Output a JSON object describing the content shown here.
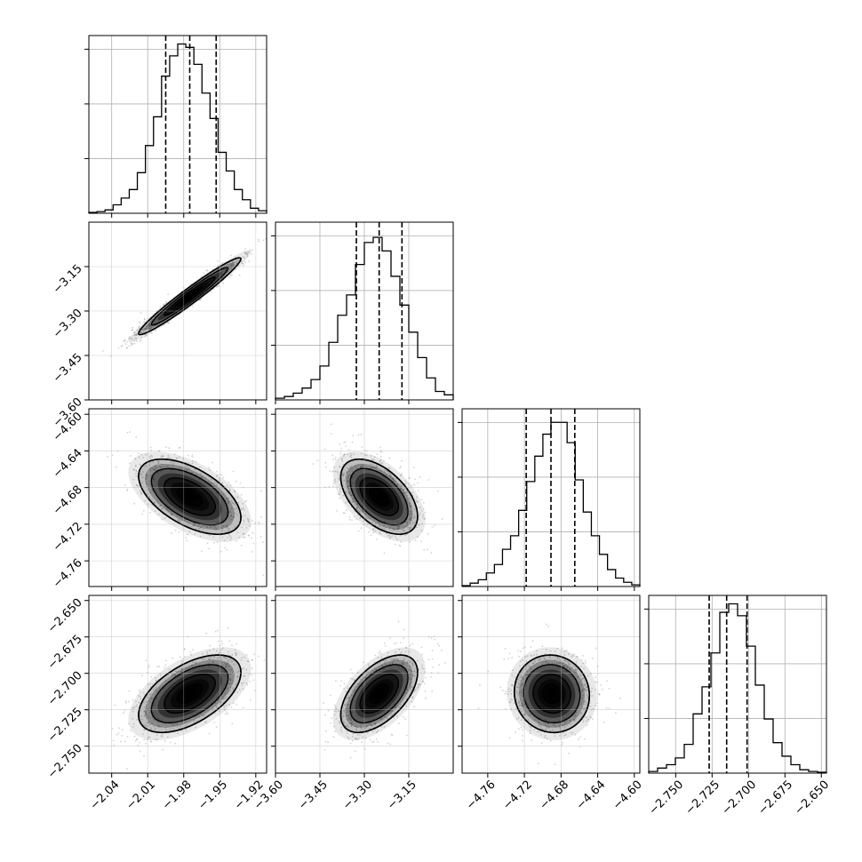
{
  "chart_data": {
    "type": "corner",
    "parameters": [
      {
        "index": 0,
        "range": [
          -2.059,
          -1.911
        ],
        "ticks": [
          -2.04,
          -2.01,
          -1.98,
          -1.95,
          -1.92
        ],
        "tick_labels": [
          "−2.04",
          "−2.01",
          "−1.98",
          "−1.95",
          "−1.92"
        ],
        "quantiles": [
          -1.995,
          -1.975,
          -1.953
        ],
        "histogram": [
          0.005,
          0.01,
          0.02,
          0.05,
          0.09,
          0.14,
          0.24,
          0.4,
          0.57,
          0.81,
          0.93,
          1.0,
          0.98,
          0.88,
          0.71,
          0.56,
          0.36,
          0.25,
          0.14,
          0.08,
          0.03,
          0.015
        ]
      },
      {
        "index": 1,
        "range": [
          -3.6,
          -3.0
        ],
        "ticks": [
          -3.6,
          -3.45,
          -3.3,
          -3.15
        ],
        "tick_labels": [
          "−3.60",
          "−3.45",
          "−3.30",
          "−3.15"
        ],
        "quantiles": [
          -3.327,
          -3.25,
          -3.173
        ],
        "histogram": [
          0.01,
          0.02,
          0.04,
          0.07,
          0.12,
          0.2,
          0.34,
          0.5,
          0.62,
          0.8,
          0.93,
          0.96,
          0.88,
          0.73,
          0.56,
          0.4,
          0.25,
          0.13,
          0.05,
          0.03
        ]
      },
      {
        "index": 2,
        "range": [
          -4.788,
          -4.594
        ],
        "ticks": [
          -4.76,
          -4.72,
          -4.68,
          -4.64,
          -4.6
        ],
        "tick_labels": [
          "−4.76",
          "−4.72",
          "−4.68",
          "−4.64",
          "−4.60"
        ],
        "quantiles": [
          -4.718,
          -4.691,
          -4.665
        ],
        "histogram": [
          0.005,
          0.02,
          0.04,
          0.08,
          0.13,
          0.22,
          0.3,
          0.45,
          0.62,
          0.77,
          0.9,
          0.97,
          0.97,
          0.85,
          0.63,
          0.44,
          0.3,
          0.19,
          0.1,
          0.05,
          0.025,
          0.01
        ]
      },
      {
        "index": 3,
        "range": [
          -2.7685,
          -2.6465
        ],
        "ticks": [
          -2.75,
          -2.725,
          -2.7,
          -2.675,
          -2.65
        ],
        "tick_labels": [
          "−2.750",
          "−2.725",
          "−2.700",
          "−2.675",
          "−2.650"
        ],
        "y_tick_labels": [
          "−2.650",
          "−2.675",
          "−2.700",
          "−2.725",
          "−2.750"
        ],
        "quantiles": [
          -2.727,
          -2.715,
          -2.701
        ],
        "histogram": [
          0.01,
          0.03,
          0.05,
          0.09,
          0.17,
          0.35,
          0.51,
          0.71,
          0.95,
          1.0,
          0.93,
          0.75,
          0.52,
          0.32,
          0.18,
          0.1,
          0.05,
          0.02,
          0.01,
          0.005
        ]
      }
    ],
    "correlations": [
      {
        "i": 1,
        "j": 0,
        "mean": [
          -1.975,
          -3.25
        ],
        "sd": [
          0.0213,
          0.0649
        ],
        "rho": 0.97
      },
      {
        "i": 2,
        "j": 0,
        "mean": [
          -1.975,
          -4.69
        ],
        "sd": [
          0.0213,
          0.0205
        ],
        "rho": -0.55
      },
      {
        "i": 2,
        "j": 1,
        "mean": [
          -3.25,
          -4.69
        ],
        "sd": [
          0.0649,
          0.0205
        ],
        "rho": -0.52
      },
      {
        "i": 3,
        "j": 0,
        "mean": [
          -1.975,
          -2.714
        ],
        "sd": [
          0.0213,
          0.0133
        ],
        "rho": 0.55
      },
      {
        "i": 3,
        "j": 1,
        "mean": [
          -3.25,
          -2.714
        ],
        "sd": [
          0.0649,
          0.0133
        ],
        "rho": 0.55
      },
      {
        "i": 3,
        "j": 2,
        "mean": [
          -4.69,
          -2.714
        ],
        "sd": [
          0.0205,
          0.0133
        ],
        "rho": -0.05
      }
    ],
    "contour_levels_sigma": [
      0.5,
      1.0,
      1.5,
      2.0
    ],
    "grid": true,
    "colors": {
      "hist": "#000000",
      "contour": "#000000",
      "density": "#000000",
      "points": "#7f7f7f",
      "grid": "#b0b0b0"
    }
  }
}
